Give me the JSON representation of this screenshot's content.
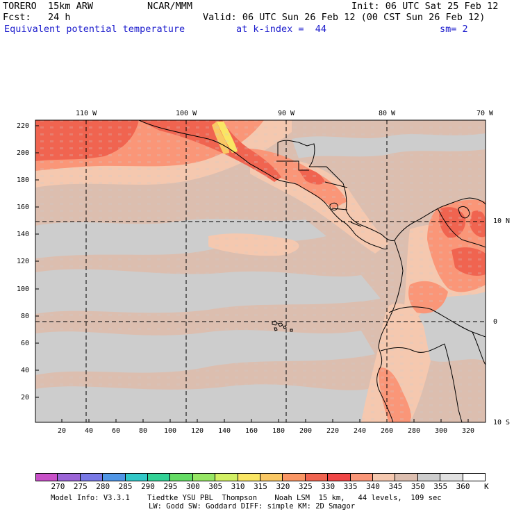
{
  "header": {
    "model": "TORERO  15km ARW",
    "center": "NCAR/MMM",
    "init": "Init: 06 UTC Sat 25 Feb 12",
    "fcst": "Fcst:   24 h",
    "valid": "Valid: 06 UTC Sun 26 Feb 12 (00 CST Sun 26 Feb 12)",
    "field": "Equivalent potential temperature",
    "level": "at k-index =  44",
    "smooth": "sm= 2"
  },
  "map": {
    "top_lon_labels": [
      "110 W",
      "100 W",
      "90 W",
      "80 W",
      "70 W"
    ],
    "right_lat_labels": [
      "10 N",
      "0",
      "10 S"
    ],
    "left_ticks": [
      "220",
      "200",
      "180",
      "160",
      "140",
      "120",
      "100",
      "80",
      "60",
      "40",
      "20"
    ],
    "bottom_ticks": [
      "20",
      "40",
      "60",
      "80",
      "100",
      "120",
      "140",
      "160",
      "180",
      "200",
      "220",
      "240",
      "260",
      "280",
      "300",
      "320"
    ]
  },
  "colorbar": {
    "labels": [
      "270",
      "275",
      "280",
      "285",
      "290",
      "295",
      "300",
      "305",
      "310",
      "315",
      "320",
      "325",
      "330",
      "335",
      "340",
      "345",
      "350",
      "355",
      "360"
    ],
    "unit": "K",
    "colors": [
      "#c850c8",
      "#9b64d7",
      "#7878e6",
      "#5096e6",
      "#32c8c8",
      "#32d296",
      "#64dc64",
      "#96e664",
      "#d2f064",
      "#fae664",
      "#fac864",
      "#fa9664",
      "#f06450",
      "#f04646",
      "#fa9678",
      "#f5c8af",
      "#dcbeaf",
      "#cdcdcd",
      "#e1e1e1",
      "#ffffff"
    ]
  },
  "footer": {
    "line1": "Model Info: V3.3.1    Tiedtke YSU PBL  Thompson    Noah LSM  15 km,   44 levels,  109 sec",
    "line2": "LW: Godd SW: Goddard DIFF: simple KM: 2D Smagor"
  }
}
